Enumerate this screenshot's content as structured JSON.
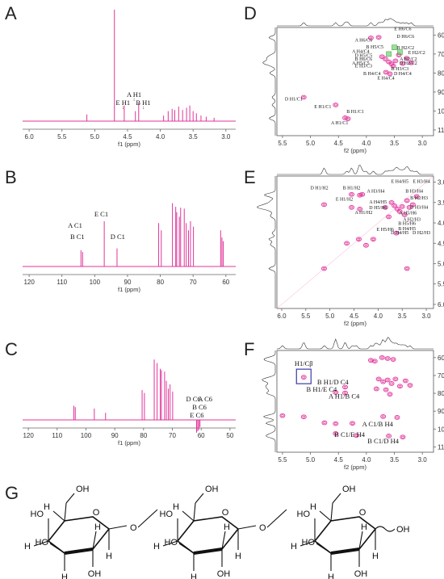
{
  "panels": {
    "A": "A",
    "B": "B",
    "C": "C",
    "D": "D",
    "E": "E",
    "F": "F",
    "G": "G"
  },
  "chart_data": [
    {
      "id": "A",
      "type": "line",
      "xlabel": "f1 (ppm)",
      "xticks": [
        "6.0",
        "5.5",
        "5.0",
        "4.5",
        "4.0",
        "3.5",
        "3.0"
      ],
      "xlim": [
        6.1,
        2.85
      ],
      "peaks": [
        {
          "x": 5.12,
          "h": 0.06
        },
        {
          "x": 4.7,
          "h": 1.0
        },
        {
          "x": 4.55,
          "h": 0.14
        },
        {
          "x": 4.38,
          "h": 0.09
        },
        {
          "x": 4.33,
          "h": 0.16
        },
        {
          "x": 3.95,
          "h": 0.05
        },
        {
          "x": 3.88,
          "h": 0.09
        },
        {
          "x": 3.82,
          "h": 0.11
        },
        {
          "x": 3.78,
          "h": 0.1
        },
        {
          "x": 3.72,
          "h": 0.13
        },
        {
          "x": 3.66,
          "h": 0.1
        },
        {
          "x": 3.6,
          "h": 0.12
        },
        {
          "x": 3.55,
          "h": 0.14
        },
        {
          "x": 3.5,
          "h": 0.09
        },
        {
          "x": 3.45,
          "h": 0.07
        },
        {
          "x": 3.38,
          "h": 0.05
        },
        {
          "x": 3.3,
          "h": 0.04
        },
        {
          "x": 3.18,
          "h": 0.03
        }
      ],
      "labels": [
        {
          "text": "E H1",
          "x": 4.57,
          "row": 1
        },
        {
          "text": "A H1",
          "x": 4.4,
          "row": 0
        },
        {
          "text": "B H1",
          "x": 4.26,
          "row": 1
        }
      ]
    },
    {
      "id": "B",
      "type": "line",
      "xlabel": "f1 (ppm)",
      "xticks": [
        "120",
        "110",
        "100",
        "90",
        "80",
        "70",
        "60"
      ],
      "xlim": [
        122,
        57
      ],
      "peaks": [
        {
          "x": 104.2,
          "h": 0.18
        },
        {
          "x": 103.7,
          "h": 0.16
        },
        {
          "x": 97.1,
          "h": 0.5
        },
        {
          "x": 93.2,
          "h": 0.2
        },
        {
          "x": 80.5,
          "h": 0.48
        },
        {
          "x": 79.7,
          "h": 0.4
        },
        {
          "x": 76.3,
          "h": 0.7
        },
        {
          "x": 75.3,
          "h": 0.66
        },
        {
          "x": 75.0,
          "h": 0.6
        },
        {
          "x": 74.2,
          "h": 0.55
        },
        {
          "x": 73.8,
          "h": 0.65
        },
        {
          "x": 72.7,
          "h": 0.64
        },
        {
          "x": 72.1,
          "h": 0.48
        },
        {
          "x": 71.4,
          "h": 0.4
        },
        {
          "x": 70.8,
          "h": 0.5
        },
        {
          "x": 69.9,
          "h": 0.44
        },
        {
          "x": 61.6,
          "h": 0.4
        },
        {
          "x": 61.2,
          "h": 0.32
        },
        {
          "x": 60.8,
          "h": 0.28
        }
      ],
      "labels": [
        {
          "text": "E C1",
          "x": 98.0,
          "row": 0
        },
        {
          "text": "A C1",
          "x": 106.0,
          "row": 1
        },
        {
          "text": "B C1",
          "x": 105.3,
          "row": 2
        },
        {
          "text": "D C1",
          "x": 93.0,
          "row": 2
        }
      ]
    },
    {
      "id": "C",
      "type": "line",
      "xlabel": "f1 (ppm)",
      "xticks": [
        "120",
        "110",
        "100",
        "90",
        "80",
        "70",
        "60",
        "50"
      ],
      "xlim": [
        122,
        48
      ],
      "peaks": [
        {
          "x": 104.2,
          "h": 0.2
        },
        {
          "x": 103.7,
          "h": 0.18
        },
        {
          "x": 97.1,
          "h": 0.16
        },
        {
          "x": 93.2,
          "h": 0.1
        },
        {
          "x": 80.5,
          "h": 0.42
        },
        {
          "x": 79.7,
          "h": 0.38
        },
        {
          "x": 76.3,
          "h": 0.85
        },
        {
          "x": 75.3,
          "h": 0.8
        },
        {
          "x": 74.2,
          "h": 0.72
        },
        {
          "x": 73.8,
          "h": 0.7
        },
        {
          "x": 72.7,
          "h": 0.68
        },
        {
          "x": 72.1,
          "h": 0.55
        },
        {
          "x": 71.4,
          "h": 0.44
        },
        {
          "x": 70.8,
          "h": 0.5
        },
        {
          "x": 69.9,
          "h": 0.4
        },
        {
          "x": 61.6,
          "h": -0.18
        },
        {
          "x": 61.2,
          "h": -0.16
        },
        {
          "x": 60.8,
          "h": -0.14
        },
        {
          "x": 60.4,
          "h": -0.1
        }
      ],
      "labels": [
        {
          "text": "D C6",
          "x": 62.7,
          "row": 0
        },
        {
          "text": "A C6",
          "x": 58.6,
          "row": 0
        },
        {
          "text": "B C6",
          "x": 60.6,
          "row": 1
        },
        {
          "text": "E C6",
          "x": 61.5,
          "row": 2
        }
      ]
    },
    {
      "id": "D",
      "type": "scatter",
      "xlabel": "f2 (ppm)",
      "ylabel": "f1 (ppm)",
      "xticks": [
        "5.5",
        "5.0",
        "4.5",
        "4.0",
        "3.5",
        "3.0"
      ],
      "yticks": [
        "60",
        "70",
        "80",
        "90",
        "100",
        "110"
      ],
      "xlim": [
        5.6,
        2.8
      ],
      "ylim": [
        56,
        113
      ],
      "cross_peaks": [
        {
          "x": 5.12,
          "y": 92.8
        },
        {
          "x": 4.55,
          "y": 96.8
        },
        {
          "x": 4.38,
          "y": 103.6
        },
        {
          "x": 4.33,
          "y": 104.1
        },
        {
          "x": 3.92,
          "y": 61.5
        },
        {
          "x": 3.78,
          "y": 61.2
        },
        {
          "x": 3.72,
          "y": 71.4
        },
        {
          "x": 3.66,
          "y": 72.6
        },
        {
          "x": 3.6,
          "y": 74.1
        },
        {
          "x": 3.55,
          "y": 75.2
        },
        {
          "x": 3.52,
          "y": 76.3
        },
        {
          "x": 3.48,
          "y": 73.6
        },
        {
          "x": 3.42,
          "y": 70.5
        },
        {
          "x": 3.35,
          "y": 75.0
        },
        {
          "x": 3.65,
          "y": 79.6
        },
        {
          "x": 3.58,
          "y": 80.4
        },
        {
          "x": 3.2,
          "y": 74.6
        },
        {
          "x": 3.28,
          "y": 72.2
        }
      ],
      "labels": [
        {
          "text": "E H6/C6",
          "x": 3.35,
          "y": 57.5
        },
        {
          "text": "D H6/C6",
          "x": 3.3,
          "y": 61.5
        },
        {
          "text": "A H6/C6",
          "x": 4.05,
          "y": 63.5
        },
        {
          "text": "B H5/C5",
          "x": 3.85,
          "y": 67.0
        },
        {
          "text": "B H2/C2",
          "x": 3.3,
          "y": 67.5
        },
        {
          "text": "E H2/C2",
          "x": 3.1,
          "y": 70.0
        },
        {
          "text": "A H4/C4",
          "x": 4.1,
          "y": 69.5
        },
        {
          "text": "D H5/C5",
          "x": 4.05,
          "y": 71.5
        },
        {
          "text": "B H6/C6",
          "x": 4.05,
          "y": 73.5
        },
        {
          "text": "A H5/C5",
          "x": 4.1,
          "y": 75.5
        },
        {
          "text": "E H3/C3",
          "x": 4.05,
          "y": 77.0
        },
        {
          "text": "A H2/C2",
          "x": 3.25,
          "y": 73.5
        },
        {
          "text": "D H2/C2",
          "x": 3.25,
          "y": 75.5
        },
        {
          "text": "B H3/C3",
          "x": 3.4,
          "y": 78.5
        },
        {
          "text": "B H4/C4",
          "x": 3.9,
          "y": 81.0
        },
        {
          "text": "D H4/C4",
          "x": 3.35,
          "y": 81.0
        },
        {
          "text": "E H4/C4",
          "x": 3.65,
          "y": 83.5
        },
        {
          "text": "D H1/C1",
          "x": 5.3,
          "y": 94.5
        },
        {
          "text": "E H1/C1",
          "x": 4.78,
          "y": 98.5
        },
        {
          "text": "B H1/C1",
          "x": 4.2,
          "y": 101.0
        },
        {
          "text": "A H1/C1",
          "x": 4.48,
          "y": 107.0
        }
      ]
    },
    {
      "id": "E",
      "type": "scatter",
      "xlabel": "f2 (ppm)",
      "ylabel": "f1 (ppm)",
      "xticks": [
        "6.0",
        "5.5",
        "5.0",
        "4.5",
        "4.0",
        "3.5",
        "3.0"
      ],
      "yticks": [
        "3.0",
        "3.5",
        "4.0",
        "4.5",
        "5.0",
        "5.5",
        "6.0"
      ],
      "xlim": [
        6.1,
        2.85
      ],
      "ylim": [
        2.85,
        6.1
      ],
      "cross_peaks": [
        {
          "x": 5.12,
          "y": 3.55
        },
        {
          "x": 4.55,
          "y": 3.3
        },
        {
          "x": 4.38,
          "y": 3.32
        },
        {
          "x": 4.33,
          "y": 3.3
        },
        {
          "x": 4.55,
          "y": 3.62
        },
        {
          "x": 4.38,
          "y": 3.66
        },
        {
          "x": 3.72,
          "y": 3.5
        },
        {
          "x": 3.66,
          "y": 3.58
        },
        {
          "x": 3.6,
          "y": 3.66
        },
        {
          "x": 3.55,
          "y": 3.72
        },
        {
          "x": 3.5,
          "y": 3.6
        },
        {
          "x": 3.45,
          "y": 3.8
        },
        {
          "x": 3.4,
          "y": 3.45
        },
        {
          "x": 3.35,
          "y": 3.62
        },
        {
          "x": 3.28,
          "y": 3.55
        },
        {
          "x": 3.2,
          "y": 3.35
        },
        {
          "x": 3.85,
          "y": 3.62
        },
        {
          "x": 3.78,
          "y": 3.85
        },
        {
          "x": 4.1,
          "y": 4.4
        },
        {
          "x": 4.25,
          "y": 4.55
        },
        {
          "x": 4.65,
          "y": 4.5
        },
        {
          "x": 5.12,
          "y": 5.12
        },
        {
          "x": 3.4,
          "y": 5.12
        },
        {
          "x": 4.4,
          "y": 4.4
        },
        {
          "x": 3.62,
          "y": 4.25
        }
      ],
      "labels": [
        {
          "text": "E H4/H5",
          "x": 3.55,
          "y": 3.02
        },
        {
          "text": "E H3/H4",
          "x": 3.1,
          "y": 3.02
        },
        {
          "text": "D H1/H2",
          "x": 5.22,
          "y": 3.18
        },
        {
          "text": "B H1/H2",
          "x": 4.55,
          "y": 3.18
        },
        {
          "text": "A H3/H4",
          "x": 4.05,
          "y": 3.26
        },
        {
          "text": "B H3/H4",
          "x": 3.25,
          "y": 3.26
        },
        {
          "text": "E H1/H2",
          "x": 4.7,
          "y": 3.45
        },
        {
          "text": "B H2/H3",
          "x": 3.15,
          "y": 3.42
        },
        {
          "text": "A H4/H5",
          "x": 4.0,
          "y": 3.52
        },
        {
          "text": "D H3/H4",
          "x": 3.15,
          "y": 3.65
        },
        {
          "text": "D H5/H6",
          "x": 4.0,
          "y": 3.66
        },
        {
          "text": "A H5/H6",
          "x": 3.38,
          "y": 3.79
        },
        {
          "text": "A H1/H2",
          "x": 4.3,
          "y": 3.78
        },
        {
          "text": "A H2/H3",
          "x": 3.3,
          "y": 3.95
        },
        {
          "text": "B H5/H6",
          "x": 3.4,
          "y": 4.05
        },
        {
          "text": "E H5/H6",
          "x": 3.85,
          "y": 4.2
        },
        {
          "text": "B H4/H5",
          "x": 3.4,
          "y": 4.18
        },
        {
          "text": "D H4/H5",
          "x": 3.55,
          "y": 4.28
        },
        {
          "text": "D H2/H3",
          "x": 3.1,
          "y": 4.28
        }
      ]
    },
    {
      "id": "F",
      "type": "scatter",
      "xlabel": "f2 (ppm)",
      "ylabel": "f1 (ppm)",
      "xticks": [
        "5.5",
        "5.0",
        "4.5",
        "4.0",
        "3.5",
        "3.0"
      ],
      "yticks": [
        "60",
        "70",
        "80",
        "90",
        "100",
        "110"
      ],
      "xlim": [
        5.6,
        2.8
      ],
      "ylim": [
        56,
        113
      ],
      "cross_peaks": [
        {
          "x": 5.12,
          "y": 71.0
        },
        {
          "x": 4.38,
          "y": 79.8
        },
        {
          "x": 4.38,
          "y": 76.5
        },
        {
          "x": 4.55,
          "y": 79.5
        },
        {
          "x": 3.72,
          "y": 60.0
        },
        {
          "x": 3.62,
          "y": 60.5
        },
        {
          "x": 3.52,
          "y": 61.0
        },
        {
          "x": 3.92,
          "y": 61.5
        },
        {
          "x": 3.85,
          "y": 62.0
        },
        {
          "x": 3.78,
          "y": 72.0
        },
        {
          "x": 3.7,
          "y": 73.5
        },
        {
          "x": 3.62,
          "y": 72.5
        },
        {
          "x": 3.55,
          "y": 74.5
        },
        {
          "x": 3.48,
          "y": 72.0
        },
        {
          "x": 3.4,
          "y": 76.0
        },
        {
          "x": 3.3,
          "y": 73.0
        },
        {
          "x": 3.22,
          "y": 75.5
        },
        {
          "x": 3.82,
          "y": 77.5
        },
        {
          "x": 3.65,
          "y": 78.0
        },
        {
          "x": 3.58,
          "y": 80.5
        },
        {
          "x": 5.5,
          "y": 92.5
        },
        {
          "x": 5.12,
          "y": 93.2
        },
        {
          "x": 4.75,
          "y": 96.5
        },
        {
          "x": 4.55,
          "y": 97.0
        },
        {
          "x": 4.25,
          "y": 96.8
        },
        {
          "x": 4.18,
          "y": 103.6
        },
        {
          "x": 3.6,
          "y": 103.9
        },
        {
          "x": 3.35,
          "y": 104.5
        },
        {
          "x": 4.55,
          "y": 102.5
        },
        {
          "x": 3.7,
          "y": 93.0
        },
        {
          "x": 3.45,
          "y": 93.5
        }
      ],
      "labels": [
        {
          "text": "H1/Cβ",
          "x": 5.12,
          "y": 64.5
        },
        {
          "text": "B H1/D C4",
          "x": 4.6,
          "y": 75.0
        },
        {
          "text": "B H1/E C4",
          "x": 4.8,
          "y": 79.0
        },
        {
          "text": "A H1/B C4",
          "x": 4.4,
          "y": 83.0
        },
        {
          "text": "A C1/B H4",
          "x": 3.8,
          "y": 98.5
        },
        {
          "text": "B C1/E H4",
          "x": 4.3,
          "y": 104.5
        },
        {
          "text": "B C1/D H4",
          "x": 3.7,
          "y": 108.0
        }
      ]
    }
  ],
  "structure": {
    "OH": "OH",
    "HO": "HO",
    "H": "H",
    "O": "O"
  }
}
